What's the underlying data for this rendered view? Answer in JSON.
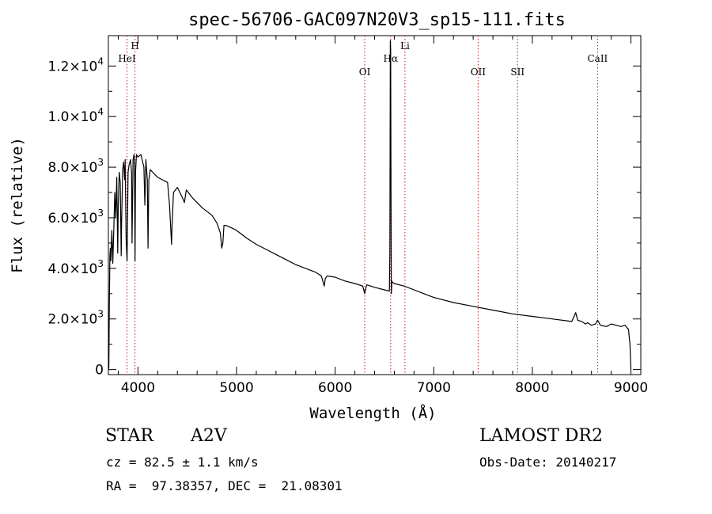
{
  "chart_data": {
    "type": "line",
    "title": "spec-56706-GAC097N20V3_sp15-111.fits",
    "xlabel": "Wavelength (Å)",
    "ylabel": "Flux (relative)",
    "xlim": [
      3700,
      9100
    ],
    "ylim": [
      -200,
      13200
    ],
    "x_ticks": [
      4000,
      5000,
      6000,
      7000,
      8000,
      9000
    ],
    "x_tick_labels": [
      "4000",
      "5000",
      "6000",
      "7000",
      "8000",
      "9000"
    ],
    "y_ticks": [
      0,
      2000,
      4000,
      6000,
      8000,
      10000,
      12000
    ],
    "y_tick_mantissas": [
      "0",
      "2.0×10",
      "4.0×10",
      "6.0×10",
      "8.0×10",
      "1.0×10",
      "1.2×10"
    ],
    "y_tick_exponents": [
      "",
      "3",
      "3",
      "3",
      "3",
      "4",
      "4"
    ],
    "grid": false,
    "legend": "none",
    "line_color": "#000000",
    "marker_color": "#b22222",
    "lines": [
      {
        "name": "HeI",
        "x": 3889,
        "label_level": "low"
      },
      {
        "name": "H",
        "x": 3970,
        "label_level": "high"
      },
      {
        "name": "OI",
        "x": 6300,
        "label_level": "mid"
      },
      {
        "name": "Hα",
        "x": 6563,
        "label_level": "low"
      },
      {
        "name": "Li",
        "x": 6708,
        "label_level": "high"
      },
      {
        "name": "OII",
        "x": 7450,
        "label_level": "mid"
      },
      {
        "name": "SII",
        "x": 7850,
        "label_level": "mid"
      },
      {
        "name": "CaII",
        "x": 8662,
        "label_level": "low"
      }
    ],
    "spectrum": {
      "x": [
        3700,
        3705,
        3710,
        3715,
        3720,
        3725,
        3735,
        3745,
        3755,
        3765,
        3775,
        3785,
        3795,
        3800,
        3810,
        3820,
        3830,
        3835,
        3845,
        3855,
        3865,
        3870,
        3880,
        3889,
        3900,
        3910,
        3925,
        3935,
        3940,
        3950,
        3960,
        3965,
        3970,
        3975,
        3985,
        4000,
        4030,
        4060,
        4070,
        4080,
        4095,
        4102,
        4110,
        4125,
        4150,
        4200,
        4250,
        4300,
        4320,
        4335,
        4340,
        4345,
        4360,
        4400,
        4450,
        4471,
        4490,
        4550,
        4650,
        4750,
        4800,
        4835,
        4850,
        4861,
        4872,
        4890,
        4950,
        5000,
        5100,
        5200,
        5300,
        5400,
        5500,
        5600,
        5700,
        5800,
        5860,
        5890,
        5900,
        5920,
        6000,
        6100,
        6200,
        6280,
        6300,
        6320,
        6400,
        6500,
        6550,
        6555,
        6560,
        6563,
        6567,
        6570,
        6575,
        6580,
        6600,
        6700,
        6800,
        6900,
        7000,
        7200,
        7400,
        7600,
        7800,
        8000,
        8200,
        8400,
        8440,
        8460,
        8500,
        8540,
        8560,
        8600,
        8640,
        8662,
        8690,
        8750,
        8800,
        8900,
        8940,
        8960,
        8975,
        8990,
        9000
      ],
      "y": [
        0,
        100,
        2500,
        4500,
        4800,
        4300,
        5500,
        4200,
        5600,
        7000,
        6000,
        7600,
        4600,
        6500,
        7800,
        7400,
        4500,
        6000,
        7900,
        8200,
        7500,
        8300,
        5200,
        4300,
        7800,
        8100,
        8300,
        7800,
        5000,
        8300,
        8500,
        8100,
        4300,
        7800,
        8500,
        8400,
        8500,
        8000,
        6500,
        8300,
        7500,
        4800,
        7500,
        7900,
        7800,
        7600,
        7500,
        7400,
        6500,
        5400,
        4950,
        5600,
        7000,
        7200,
        6800,
        6600,
        7100,
        6800,
        6400,
        6100,
        5800,
        5400,
        4800,
        5000,
        5700,
        5700,
        5600,
        5500,
        5200,
        4950,
        4750,
        4550,
        4350,
        4150,
        4000,
        3850,
        3700,
        3300,
        3600,
        3700,
        3650,
        3500,
        3400,
        3300,
        3000,
        3350,
        3250,
        3150,
        3100,
        4500,
        13000,
        12600,
        6500,
        3000,
        3500,
        3450,
        3400,
        3300,
        3150,
        3000,
        2850,
        2650,
        2500,
        2350,
        2200,
        2100,
        2000,
        1900,
        2250,
        1950,
        1900,
        1800,
        1850,
        1750,
        1800,
        1950,
        1750,
        1700,
        1800,
        1700,
        1750,
        1650,
        1600,
        1000,
        0
      ]
    }
  },
  "footer": {
    "object_type": "STAR",
    "spectral_class": "A2V",
    "velocity": "cz = 82.5 ± 1.1 km/s",
    "coordinates": "RA =  97.38357, DEC =  21.08301",
    "survey": "LAMOST DR2",
    "obs_date": "Obs-Date: 20140217"
  }
}
